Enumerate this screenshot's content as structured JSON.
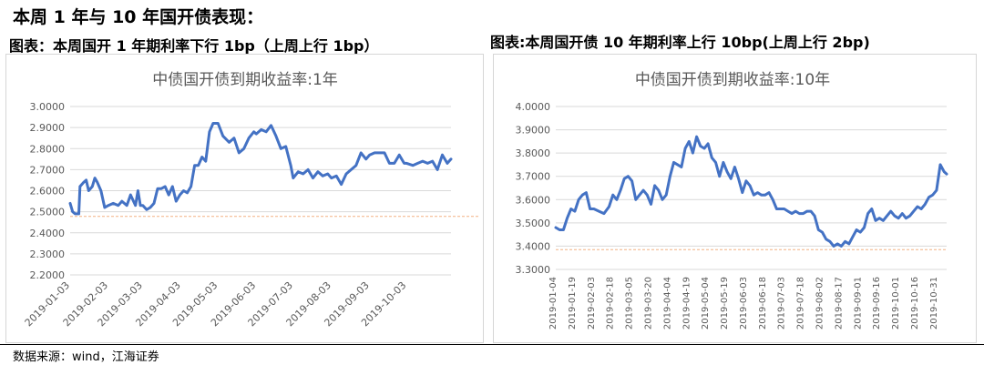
{
  "heading": "本周 1 年与 10 年国开债表现：",
  "source": "数据来源：wind，江海证券",
  "left_caption": "图表：本周国开 1 年期利率下行 1bp（上周上行 1bp）",
  "right_caption": "图表:本周国开债 10 年期利率上行 10bp(上周上行 2bp)",
  "colors": {
    "series": "#4472C4",
    "reference": "#F4B183",
    "grid": "#D9D9D9",
    "text": "#595959"
  },
  "chart_data": [
    {
      "type": "line",
      "title": "中债国开债到期收益率:1年",
      "xlabel": "",
      "ylabel": "",
      "ylim": [
        2.2,
        3.0
      ],
      "y_ticks": [
        "3.0000",
        "2.9000",
        "2.8000",
        "2.7000",
        "2.6000",
        "2.5000",
        "2.4000",
        "2.3000",
        "2.2000"
      ],
      "x_ticks": [
        "2019-01-03",
        "2019-02-03",
        "2019-03-03",
        "2019-04-03",
        "2019-05-03",
        "2019-06-03",
        "2019-07-03",
        "2019-08-03",
        "2019-09-03",
        "2019-10-03"
      ],
      "x_range": [
        "2019-01-03",
        "2019-11-08"
      ],
      "grid": "horizontal",
      "reference_line": 2.478,
      "series": [
        {
          "x": [
            "2019-01-03",
            "2019-01-05",
            "2019-01-07",
            "2019-01-10",
            "2019-01-11",
            "2019-01-14",
            "2019-01-16",
            "2019-01-18",
            "2019-01-21",
            "2019-01-23",
            "2019-01-25",
            "2019-01-28",
            "2019-01-31",
            "2019-02-03",
            "2019-02-07",
            "2019-02-11",
            "2019-02-14",
            "2019-02-18",
            "2019-02-21",
            "2019-02-25",
            "2019-02-27",
            "2019-03-01",
            "2019-03-03",
            "2019-03-06",
            "2019-03-09",
            "2019-03-12",
            "2019-03-15",
            "2019-03-18",
            "2019-03-21",
            "2019-03-24",
            "2019-03-27",
            "2019-03-30",
            "2019-04-02",
            "2019-04-05",
            "2019-04-08",
            "2019-04-11",
            "2019-04-14",
            "2019-04-17",
            "2019-04-20",
            "2019-04-23",
            "2019-04-26",
            "2019-04-29",
            "2019-05-03",
            "2019-05-07",
            "2019-05-12",
            "2019-05-16",
            "2019-05-20",
            "2019-05-24",
            "2019-05-28",
            "2019-06-01",
            "2019-06-03",
            "2019-06-07",
            "2019-06-11",
            "2019-06-15",
            "2019-06-19",
            "2019-06-23",
            "2019-06-27",
            "2019-07-01",
            "2019-07-03",
            "2019-07-07",
            "2019-07-11",
            "2019-07-15",
            "2019-07-19",
            "2019-07-23",
            "2019-07-27",
            "2019-07-31",
            "2019-08-03",
            "2019-08-07",
            "2019-08-11",
            "2019-08-15",
            "2019-08-19",
            "2019-08-23",
            "2019-08-27",
            "2019-08-31",
            "2019-09-03",
            "2019-09-07",
            "2019-09-11",
            "2019-09-15",
            "2019-09-19",
            "2019-09-23",
            "2019-09-27",
            "2019-10-01",
            "2019-10-03",
            "2019-10-08",
            "2019-10-12",
            "2019-10-16",
            "2019-10-20",
            "2019-10-24",
            "2019-10-28",
            "2019-11-01",
            "2019-11-05",
            "2019-11-08"
          ],
          "values": [
            2.54,
            2.5,
            2.49,
            2.49,
            2.62,
            2.64,
            2.65,
            2.6,
            2.62,
            2.66,
            2.64,
            2.6,
            2.52,
            2.53,
            2.54,
            2.53,
            2.55,
            2.53,
            2.58,
            2.53,
            2.6,
            2.53,
            2.53,
            2.51,
            2.52,
            2.54,
            2.61,
            2.61,
            2.62,
            2.58,
            2.62,
            2.55,
            2.58,
            2.6,
            2.59,
            2.62,
            2.72,
            2.72,
            2.76,
            2.74,
            2.88,
            2.92,
            2.92,
            2.86,
            2.83,
            2.85,
            2.78,
            2.8,
            2.85,
            2.88,
            2.87,
            2.89,
            2.88,
            2.91,
            2.86,
            2.8,
            2.81,
            2.72,
            2.66,
            2.69,
            2.68,
            2.7,
            2.66,
            2.69,
            2.67,
            2.68,
            2.66,
            2.67,
            2.63,
            2.68,
            2.7,
            2.72,
            2.78,
            2.75,
            2.77,
            2.78,
            2.78,
            2.78,
            2.73,
            2.73,
            2.77,
            2.73,
            2.73,
            2.72,
            2.73,
            2.74,
            2.73,
            2.74,
            2.7,
            2.77,
            2.73,
            2.75
          ]
        }
      ]
    },
    {
      "type": "line",
      "title": "中债国开债到期收益率:10年",
      "xlabel": "",
      "ylabel": "",
      "ylim": [
        3.3,
        4.0
      ],
      "y_ticks": [
        "4.0000",
        "3.9000",
        "3.8000",
        "3.7000",
        "3.6000",
        "3.5000",
        "3.4000",
        "3.3000"
      ],
      "x_ticks": [
        "2019-01-04",
        "2019-01-19",
        "2019-02-03",
        "2019-02-18",
        "2019-03-05",
        "2019-03-20",
        "2019-04-04",
        "2019-04-19",
        "2019-05-04",
        "2019-05-19",
        "2019-06-03",
        "2019-06-18",
        "2019-07-03",
        "2019-07-18",
        "2019-08-02",
        "2019-08-17",
        "2019-09-01",
        "2019-09-16",
        "2019-10-01",
        "2019-10-16",
        "2019-10-31"
      ],
      "x_range": [
        "2019-01-04",
        "2019-11-08"
      ],
      "grid": "horizontal",
      "reference_line": 3.385,
      "series": [
        {
          "x": [
            "2019-01-04",
            "2019-01-07",
            "2019-01-10",
            "2019-01-13",
            "2019-01-16",
            "2019-01-19",
            "2019-01-22",
            "2019-01-25",
            "2019-01-28",
            "2019-01-31",
            "2019-02-03",
            "2019-02-07",
            "2019-02-11",
            "2019-02-15",
            "2019-02-18",
            "2019-02-21",
            "2019-02-24",
            "2019-02-27",
            "2019-03-02",
            "2019-03-05",
            "2019-03-08",
            "2019-03-11",
            "2019-03-14",
            "2019-03-17",
            "2019-03-20",
            "2019-03-23",
            "2019-03-26",
            "2019-03-29",
            "2019-04-01",
            "2019-04-04",
            "2019-04-07",
            "2019-04-10",
            "2019-04-13",
            "2019-04-16",
            "2019-04-19",
            "2019-04-22",
            "2019-04-25",
            "2019-04-28",
            "2019-05-01",
            "2019-05-04",
            "2019-05-07",
            "2019-05-10",
            "2019-05-13",
            "2019-05-16",
            "2019-05-19",
            "2019-05-22",
            "2019-05-25",
            "2019-05-28",
            "2019-05-31",
            "2019-06-03",
            "2019-06-06",
            "2019-06-09",
            "2019-06-12",
            "2019-06-15",
            "2019-06-18",
            "2019-06-21",
            "2019-06-24",
            "2019-06-27",
            "2019-06-30",
            "2019-07-03",
            "2019-07-06",
            "2019-07-09",
            "2019-07-12",
            "2019-07-15",
            "2019-07-18",
            "2019-07-21",
            "2019-07-24",
            "2019-07-27",
            "2019-07-30",
            "2019-08-02",
            "2019-08-05",
            "2019-08-08",
            "2019-08-11",
            "2019-08-14",
            "2019-08-17",
            "2019-08-20",
            "2019-08-23",
            "2019-08-26",
            "2019-08-29",
            "2019-09-01",
            "2019-09-04",
            "2019-09-07",
            "2019-09-10",
            "2019-09-13",
            "2019-09-16",
            "2019-09-19",
            "2019-09-22",
            "2019-09-25",
            "2019-09-28",
            "2019-10-01",
            "2019-10-04",
            "2019-10-07",
            "2019-10-10",
            "2019-10-13",
            "2019-10-16",
            "2019-10-19",
            "2019-10-22",
            "2019-10-25",
            "2019-10-28",
            "2019-10-31",
            "2019-11-03",
            "2019-11-06",
            "2019-11-08"
          ],
          "values": [
            3.48,
            3.47,
            3.47,
            3.52,
            3.56,
            3.55,
            3.6,
            3.62,
            3.63,
            3.56,
            3.56,
            3.55,
            3.54,
            3.57,
            3.62,
            3.6,
            3.64,
            3.69,
            3.7,
            3.68,
            3.6,
            3.62,
            3.64,
            3.62,
            3.58,
            3.66,
            3.64,
            3.6,
            3.62,
            3.7,
            3.76,
            3.75,
            3.74,
            3.82,
            3.85,
            3.8,
            3.87,
            3.83,
            3.82,
            3.84,
            3.78,
            3.76,
            3.7,
            3.76,
            3.72,
            3.69,
            3.74,
            3.69,
            3.63,
            3.68,
            3.66,
            3.62,
            3.63,
            3.62,
            3.62,
            3.63,
            3.6,
            3.56,
            3.56,
            3.56,
            3.55,
            3.54,
            3.55,
            3.54,
            3.54,
            3.55,
            3.55,
            3.53,
            3.47,
            3.46,
            3.43,
            3.42,
            3.4,
            3.41,
            3.4,
            3.42,
            3.41,
            3.44,
            3.47,
            3.46,
            3.48,
            3.54,
            3.56,
            3.51,
            3.52,
            3.51,
            3.53,
            3.55,
            3.53,
            3.52,
            3.54,
            3.52,
            3.53,
            3.55,
            3.57,
            3.56,
            3.58,
            3.61,
            3.62,
            3.64,
            3.75,
            3.72,
            3.71
          ]
        }
      ]
    }
  ]
}
